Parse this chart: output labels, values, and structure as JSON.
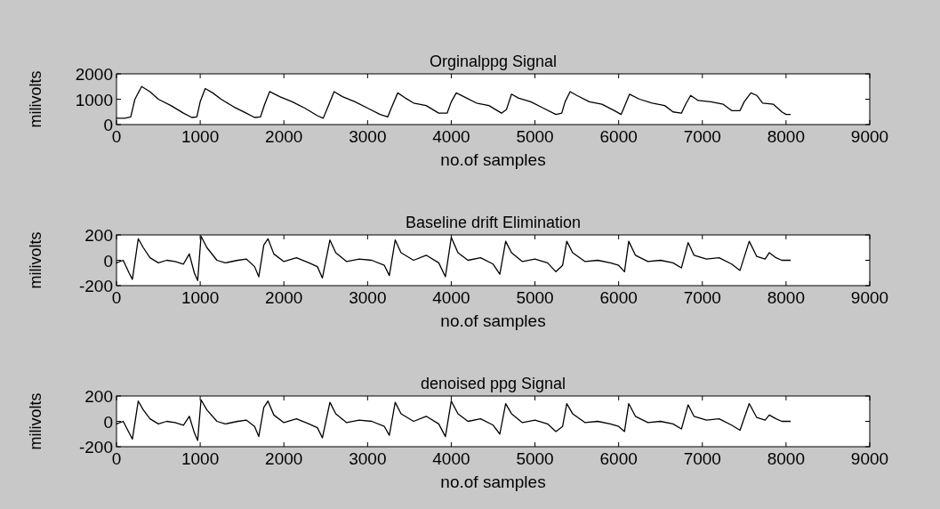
{
  "chart_data": [
    {
      "type": "line",
      "title": "Orginalppg Signal",
      "xlabel": "no.of samples",
      "ylabel": "milivolts",
      "xlim": [
        0,
        9000
      ],
      "xticks": [
        0,
        1000,
        2000,
        3000,
        4000,
        5000,
        6000,
        7000,
        8000,
        9000
      ],
      "ylim": [
        0,
        2000
      ],
      "yticks": [
        0,
        1000,
        2000
      ],
      "grid": false,
      "x": [
        0,
        100,
        170,
        220,
        300,
        400,
        500,
        650,
        800,
        900,
        960,
        1000,
        1060,
        1150,
        1250,
        1400,
        1550,
        1650,
        1720,
        1770,
        1830,
        1950,
        2100,
        2250,
        2400,
        2470,
        2520,
        2600,
        2700,
        2850,
        3000,
        3150,
        3240,
        3290,
        3360,
        3450,
        3550,
        3700,
        3850,
        3950,
        4000,
        4060,
        4150,
        4300,
        4450,
        4600,
        4660,
        4720,
        4800,
        4950,
        5100,
        5250,
        5320,
        5360,
        5420,
        5500,
        5650,
        5800,
        5950,
        6030,
        6080,
        6130,
        6250,
        6400,
        6550,
        6650,
        6750,
        6800,
        6860,
        6950,
        7100,
        7250,
        7350,
        7450,
        7500,
        7580,
        7650,
        7720,
        7850,
        7950,
        8000,
        8050
      ],
      "series": [
        {
          "color": "#000000",
          "values": [
            250,
            250,
            300,
            1000,
            1500,
            1300,
            1000,
            750,
            450,
            280,
            300,
            900,
            1420,
            1250,
            1000,
            700,
            450,
            280,
            300,
            800,
            1300,
            1100,
            900,
            650,
            350,
            250,
            650,
            1300,
            1100,
            900,
            650,
            400,
            300,
            700,
            1250,
            1050,
            850,
            750,
            450,
            450,
            900,
            1250,
            1100,
            850,
            750,
            450,
            600,
            1200,
            1050,
            900,
            650,
            400,
            450,
            900,
            1300,
            1150,
            900,
            800,
            550,
            400,
            800,
            1200,
            1000,
            850,
            750,
            500,
            450,
            800,
            1150,
            950,
            900,
            800,
            550,
            550,
            900,
            1250,
            1150,
            850,
            800,
            500,
            400,
            400
          ]
        }
      ]
    },
    {
      "type": "line",
      "title": "Baseline drift Elimination",
      "xlabel": "no.of samples",
      "ylabel": "milivolts",
      "xlim": [
        0,
        9000
      ],
      "xticks": [
        0,
        1000,
        2000,
        3000,
        4000,
        5000,
        6000,
        7000,
        8000,
        9000
      ],
      "ylim": [
        -200,
        200
      ],
      "yticks": [
        -200,
        0,
        200
      ],
      "grid": false,
      "x": [
        0,
        80,
        150,
        190,
        260,
        320,
        400,
        500,
        600,
        700,
        800,
        870,
        930,
        970,
        1010,
        1080,
        1200,
        1300,
        1450,
        1550,
        1650,
        1700,
        1760,
        1810,
        1880,
        2000,
        2150,
        2300,
        2400,
        2460,
        2550,
        2620,
        2750,
        2900,
        3050,
        3200,
        3260,
        3330,
        3400,
        3550,
        3700,
        3850,
        3930,
        4000,
        4080,
        4200,
        4350,
        4500,
        4580,
        4650,
        4720,
        4850,
        5000,
        5150,
        5250,
        5330,
        5380,
        5450,
        5600,
        5750,
        5900,
        6000,
        6070,
        6120,
        6200,
        6350,
        6500,
        6650,
        6750,
        6830,
        6900,
        7050,
        7200,
        7350,
        7450,
        7560,
        7650,
        7750,
        7800,
        7880,
        7950,
        8050
      ],
      "series": [
        {
          "color": "#000000",
          "values": [
            -20,
            0,
            -100,
            -150,
            170,
            100,
            20,
            -20,
            0,
            -10,
            -30,
            50,
            -100,
            -160,
            190,
            100,
            0,
            -20,
            0,
            10,
            -50,
            -130,
            120,
            170,
            50,
            -10,
            20,
            -20,
            -50,
            -140,
            160,
            60,
            -10,
            10,
            0,
            -40,
            -120,
            160,
            60,
            0,
            40,
            -20,
            -130,
            180,
            60,
            0,
            20,
            -30,
            -110,
            150,
            60,
            -10,
            10,
            -20,
            -90,
            -40,
            150,
            60,
            -10,
            0,
            -20,
            -40,
            -90,
            150,
            40,
            -10,
            0,
            -20,
            -60,
            140,
            40,
            10,
            20,
            -30,
            -80,
            150,
            30,
            10,
            60,
            20,
            0,
            0
          ]
        }
      ]
    },
    {
      "type": "line",
      "title": "denoised ppg Signal",
      "xlabel": "no.of samples",
      "ylabel": "milivolts",
      "xlim": [
        0,
        9000
      ],
      "xticks": [
        0,
        1000,
        2000,
        3000,
        4000,
        5000,
        6000,
        7000,
        8000,
        9000
      ],
      "ylim": [
        -200,
        200
      ],
      "yticks": [
        -200,
        0,
        200
      ],
      "grid": false,
      "x": [
        0,
        80,
        150,
        190,
        260,
        320,
        400,
        500,
        600,
        700,
        800,
        870,
        930,
        970,
        1010,
        1080,
        1200,
        1300,
        1450,
        1550,
        1650,
        1700,
        1760,
        1810,
        1880,
        2000,
        2150,
        2300,
        2400,
        2460,
        2550,
        2620,
        2750,
        2900,
        3050,
        3200,
        3260,
        3330,
        3400,
        3550,
        3700,
        3850,
        3930,
        4000,
        4080,
        4200,
        4350,
        4500,
        4580,
        4650,
        4720,
        4850,
        5000,
        5150,
        5250,
        5330,
        5380,
        5450,
        5600,
        5750,
        5900,
        6000,
        6070,
        6120,
        6200,
        6350,
        6500,
        6650,
        6750,
        6830,
        6900,
        7050,
        7200,
        7350,
        7450,
        7560,
        7650,
        7750,
        7800,
        7880,
        7950,
        8050
      ],
      "series": [
        {
          "color": "#000000",
          "values": [
            -20,
            0,
            -90,
            -140,
            160,
            90,
            20,
            -20,
            0,
            -10,
            -30,
            40,
            -90,
            -150,
            170,
            90,
            0,
            -20,
            0,
            10,
            -40,
            -120,
            110,
            160,
            50,
            -10,
            20,
            -20,
            -50,
            -130,
            150,
            60,
            -10,
            10,
            0,
            -40,
            -110,
            150,
            60,
            0,
            40,
            -20,
            -120,
            160,
            60,
            0,
            20,
            -30,
            -100,
            140,
            60,
            -10,
            10,
            -20,
            -80,
            -40,
            140,
            60,
            -10,
            0,
            -20,
            -40,
            -80,
            140,
            40,
            -10,
            0,
            -20,
            -60,
            130,
            40,
            10,
            20,
            -30,
            -70,
            140,
            30,
            10,
            50,
            20,
            0,
            0
          ]
        }
      ]
    }
  ]
}
